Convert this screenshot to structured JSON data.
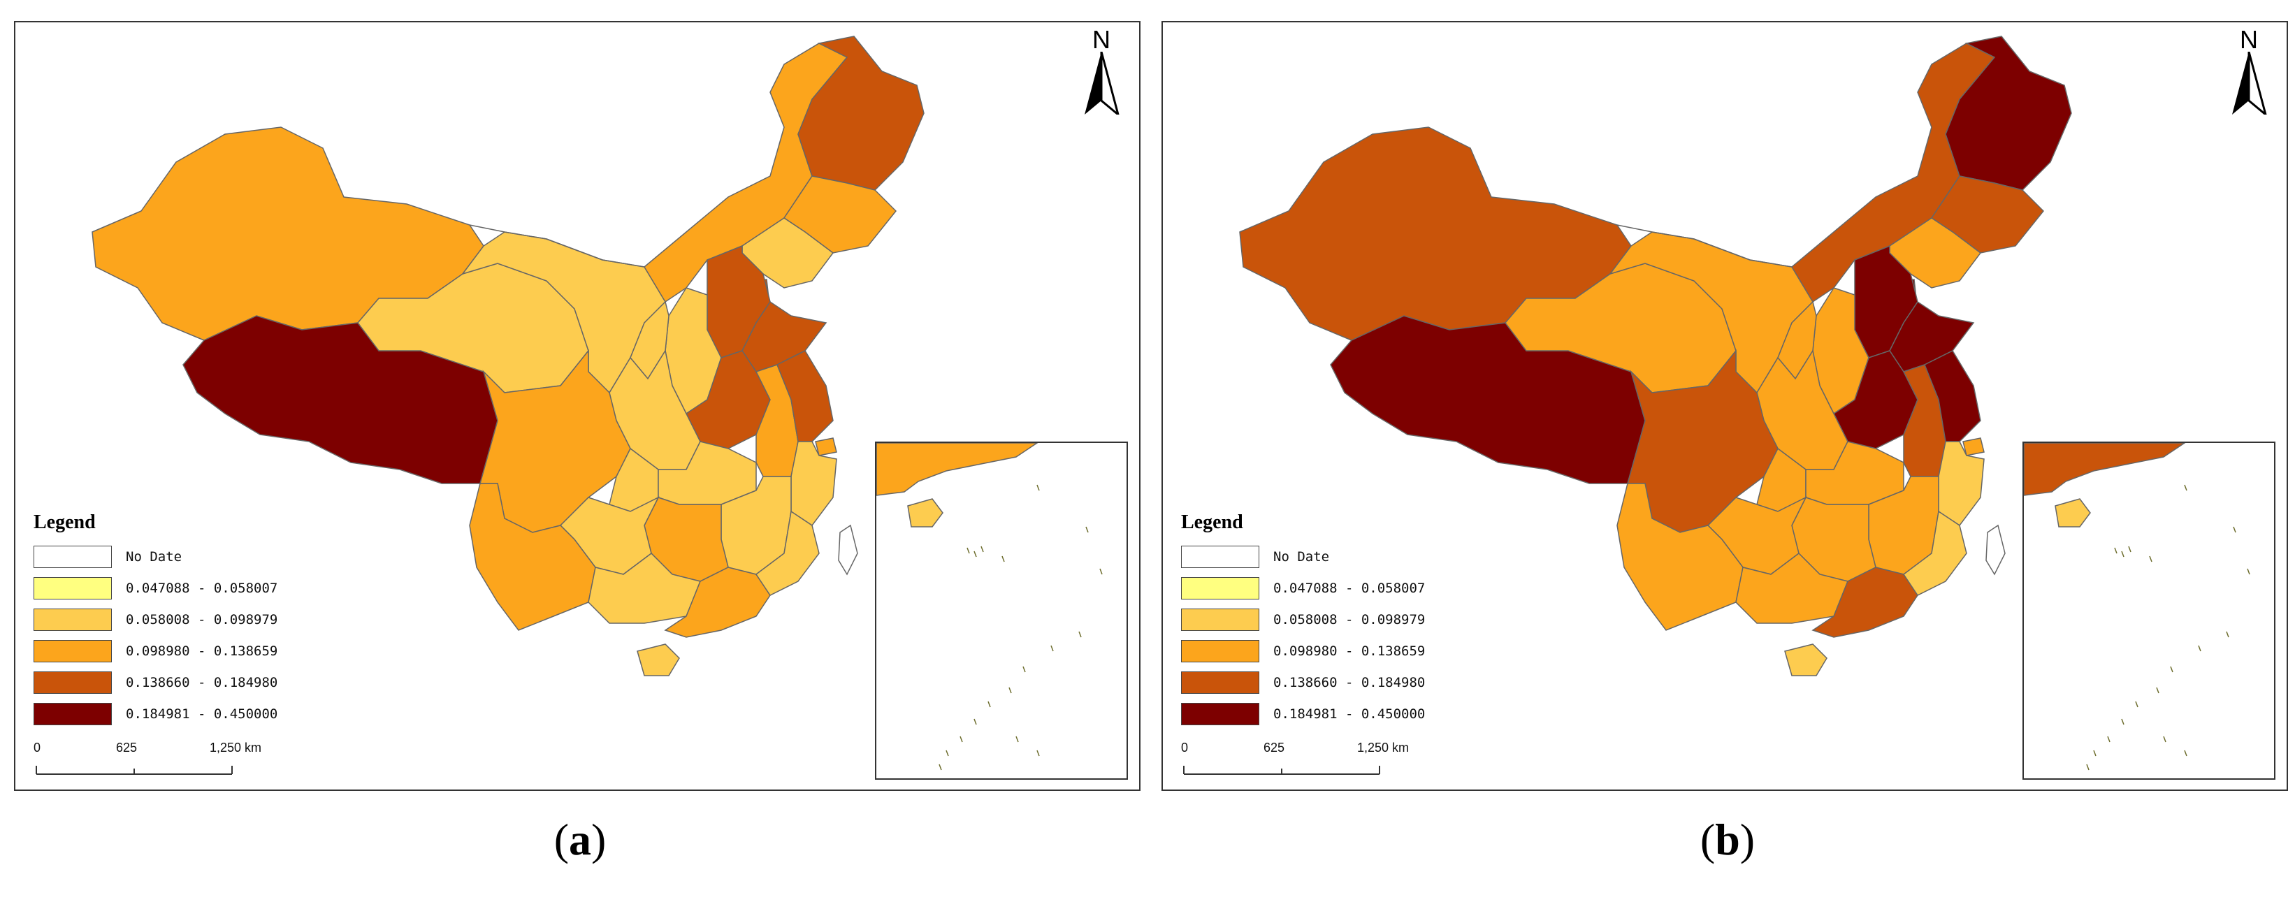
{
  "panels": [
    {
      "id": "a",
      "caption_open": "(",
      "caption_letter": "a",
      "caption_close": ")",
      "north_label": "N",
      "legend": {
        "title": "Legend",
        "classes": [
          {
            "label": "No Date",
            "color": "#ffffff"
          },
          {
            "label": "0.047088 - 0.058007",
            "color": "#ffff80"
          },
          {
            "label": "0.058008 - 0.098979",
            "color": "#fdcc4f"
          },
          {
            "label": "0.098980 - 0.138659",
            "color": "#fca51c"
          },
          {
            "label": "0.138660 - 0.184980",
            "color": "#c9540a"
          },
          {
            "label": "0.184981 - 0.450000",
            "color": "#7d0000"
          }
        ]
      },
      "scale": {
        "ticks": [
          "0",
          "625",
          "1,250 km"
        ]
      },
      "regions": {
        "xinjiang": 3,
        "tibet": 5,
        "qinghai": 2,
        "gansu": 2,
        "inner_mongolia": 3,
        "heilongjiang": 4,
        "jilin": 3,
        "liaoning": 2,
        "beijing": 1,
        "tianjin": 4,
        "hebei": 4,
        "shanxi": 2,
        "shandong": 4,
        "henan": 4,
        "ningxia": 2,
        "shaanxi": 2,
        "sichuan": 3,
        "chongqing": 2,
        "hubei": 2,
        "anhui": 3,
        "jiangsu": 4,
        "shanghai": 3,
        "zhejiang": 2,
        "jiangxi": 2,
        "hunan": 3,
        "guizhou": 2,
        "yunnan": 3,
        "guangxi": 2,
        "guangdong": 3,
        "fujian": 2,
        "hainan": 2,
        "taiwan": 0
      }
    },
    {
      "id": "b",
      "caption_open": "(",
      "caption_letter": "b",
      "caption_close": ")",
      "north_label": "N",
      "legend": {
        "title": "Legend",
        "classes": [
          {
            "label": "No Date",
            "color": "#ffffff"
          },
          {
            "label": "0.047088 - 0.058007",
            "color": "#ffff80"
          },
          {
            "label": "0.058008 - 0.098979",
            "color": "#fdcc4f"
          },
          {
            "label": "0.098980 - 0.138659",
            "color": "#fca51c"
          },
          {
            "label": "0.138660 - 0.184980",
            "color": "#c9540a"
          },
          {
            "label": "0.184981 - 0.450000",
            "color": "#7d0000"
          }
        ]
      },
      "scale": {
        "ticks": [
          "0",
          "625",
          "1,250 km"
        ]
      },
      "regions": {
        "xinjiang": 4,
        "tibet": 5,
        "qinghai": 3,
        "gansu": 3,
        "inner_mongolia": 4,
        "heilongjiang": 5,
        "jilin": 4,
        "liaoning": 3,
        "beijing": 5,
        "tianjin": 5,
        "hebei": 5,
        "shanxi": 3,
        "shandong": 5,
        "henan": 5,
        "ningxia": 3,
        "shaanxi": 3,
        "sichuan": 4,
        "chongqing": 3,
        "hubei": 3,
        "anhui": 4,
        "jiangsu": 5,
        "shanghai": 3,
        "zhejiang": 2,
        "jiangxi": 3,
        "hunan": 3,
        "guizhou": 3,
        "yunnan": 3,
        "guangxi": 3,
        "guangdong": 4,
        "fujian": 2,
        "hainan": 2,
        "taiwan": 0
      }
    }
  ]
}
